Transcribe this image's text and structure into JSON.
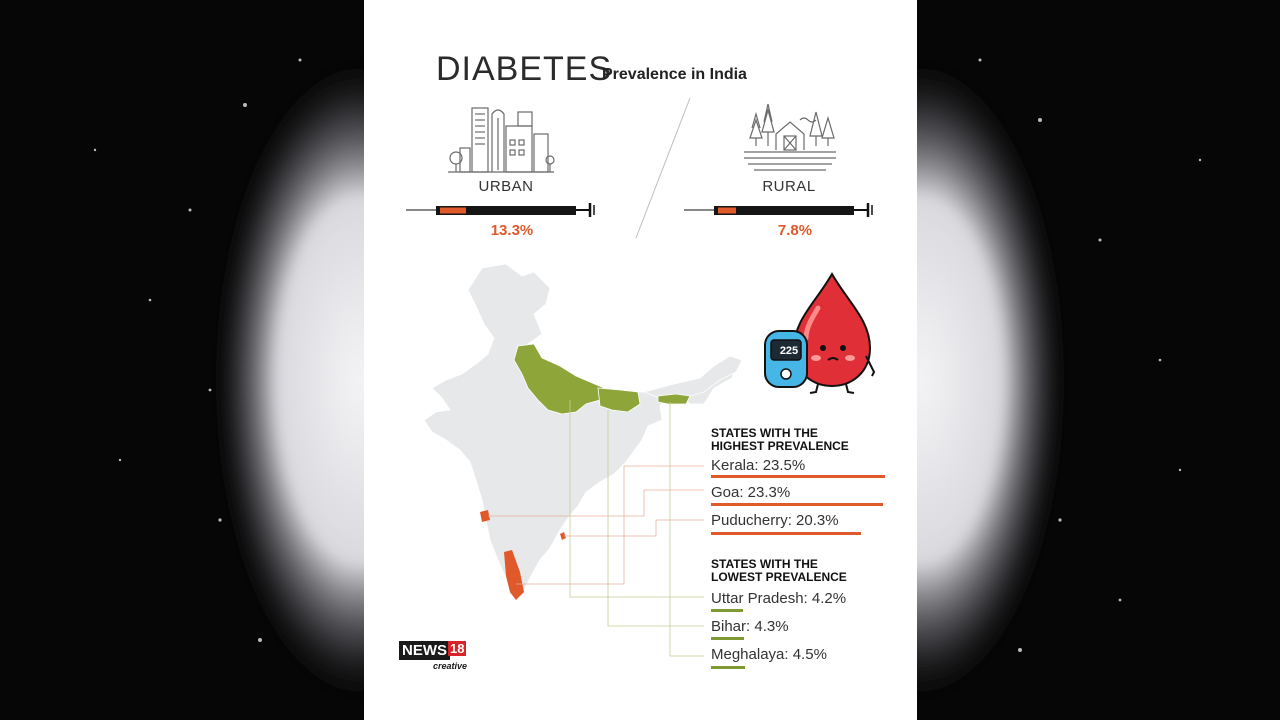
{
  "title": "DIABETES",
  "subtitle": "Prevalence in India",
  "urban": {
    "label": "URBAN",
    "value": "13.3%",
    "level": 13.3
  },
  "rural": {
    "label": "RURAL",
    "value": "7.8%",
    "level": 7.8
  },
  "glucometer_reading": "225",
  "highest": {
    "heading_line1": "STATES WITH THE",
    "heading_line2": "HIGHEST PREVALENCE",
    "items": [
      "Kerala: 23.5%",
      "Goa: 23.3%",
      "Puducherry: 20.3%"
    ]
  },
  "lowest": {
    "heading_line1": "STATES WITH THE",
    "heading_line2": "LOWEST PREVALENCE",
    "items": [
      "Uttar Pradesh: 4.2%",
      "Bihar: 4.3%",
      "Meghalaya: 4.5%"
    ]
  },
  "logo": {
    "news": "NEWS",
    "number": "18",
    "tag": "creative"
  },
  "colors": {
    "high": "#e0592a",
    "low": "#7f9a32",
    "map": "#e6e8e9",
    "highlight_green": "#8ea53a"
  }
}
